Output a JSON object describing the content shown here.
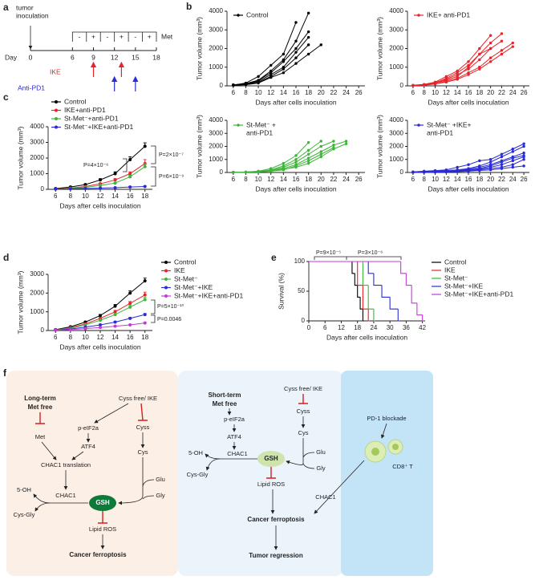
{
  "panel_labels": [
    "a",
    "b",
    "c",
    "d",
    "e",
    "f"
  ],
  "timeline": {
    "start_label": [
      "tumor",
      "inoculation"
    ],
    "day_label": "Day",
    "days": [
      0,
      6,
      9,
      12,
      15,
      18
    ],
    "met_label": "Met",
    "met_signs": [
      "-",
      "+",
      "-",
      "+",
      "-",
      "+"
    ],
    "ike_label": "IKE",
    "ike_days": [
      9,
      13
    ],
    "pd1_label": "Anti-PD1",
    "pd1_days": [
      12,
      15
    ]
  },
  "chart_data": [
    {
      "type": "line",
      "legend": [
        "Control"
      ],
      "color": "#000000",
      "x": [
        6,
        8,
        10,
        12,
        14,
        16,
        18,
        20,
        22,
        24,
        26
      ],
      "xlim": [
        5,
        27
      ],
      "xticks": [
        6,
        8,
        10,
        12,
        14,
        16,
        18,
        20,
        22,
        24,
        26
      ],
      "ylim": [
        0,
        4000
      ],
      "yticks": [
        0,
        1000,
        2000,
        3000,
        4000
      ],
      "xlabel": "Days after cells inoculation",
      "ylabel": "Tumor volume (mm³)",
      "series": [
        {
          "values": [
            60,
            100,
            300,
            800,
            1400,
            2400,
            3900,
            null,
            null,
            null,
            null
          ]
        },
        {
          "values": [
            40,
            150,
            500,
            1100,
            1700,
            3400,
            null,
            null,
            null,
            null,
            null
          ]
        },
        {
          "values": [
            50,
            120,
            300,
            700,
            1300,
            2000,
            2900,
            null,
            null,
            null,
            null
          ]
        },
        {
          "values": [
            30,
            100,
            250,
            600,
            1000,
            1800,
            2600,
            null,
            null,
            null,
            null
          ]
        },
        {
          "values": [
            30,
            80,
            200,
            500,
            900,
            1500,
            2200,
            null,
            null,
            null,
            null
          ]
        },
        {
          "values": [
            20,
            60,
            150,
            450,
            700,
            1200,
            1700,
            2200,
            null,
            null,
            null
          ]
        }
      ]
    },
    {
      "type": "line",
      "legend": [
        "IKE+ anti-PD1"
      ],
      "color": "#e8232a",
      "x": [
        6,
        8,
        10,
        12,
        14,
        16,
        18,
        20,
        22,
        24,
        26
      ],
      "xlim": [
        5,
        27
      ],
      "xticks": [
        6,
        8,
        10,
        12,
        14,
        16,
        18,
        20,
        22,
        24,
        26
      ],
      "ylim": [
        0,
        4000
      ],
      "yticks": [
        0,
        1000,
        2000,
        3000,
        4000
      ],
      "xlabel": "Days after cells inoculation",
      "ylabel": "Tumor volume (mm³)",
      "series": [
        {
          "values": [
            30,
            80,
            200,
            500,
            800,
            1300,
            2000,
            2700,
            null,
            null,
            null
          ]
        },
        {
          "values": [
            20,
            50,
            150,
            400,
            700,
            1100,
            1700,
            2300,
            2800,
            null,
            null
          ]
        },
        {
          "values": [
            20,
            60,
            180,
            350,
            600,
            900,
            1400,
            2000,
            2400,
            null,
            null
          ]
        },
        {
          "values": [
            10,
            30,
            100,
            250,
            400,
            700,
            1000,
            1500,
            1900,
            2300,
            null
          ]
        },
        {
          "values": [
            20,
            50,
            100,
            200,
            350,
            600,
            900,
            1300,
            1700,
            2100,
            null
          ]
        },
        {
          "values": [
            30,
            60,
            150,
            300,
            500,
            1000,
            1700,
            2000,
            null,
            null,
            null
          ]
        }
      ]
    },
    {
      "type": "line",
      "legend": [
        "St-Met⁻ +",
        "anti-PD1"
      ],
      "color": "#3fb53a",
      "x": [
        6,
        8,
        10,
        12,
        14,
        16,
        18,
        20,
        22,
        24,
        26
      ],
      "xlim": [
        5,
        27
      ],
      "xticks": [
        6,
        8,
        10,
        12,
        14,
        16,
        18,
        20,
        22,
        24,
        26
      ],
      "ylim": [
        0,
        4000
      ],
      "yticks": [
        0,
        1000,
        2000,
        3000,
        4000
      ],
      "xlabel": "Days after cells inoculation",
      "ylabel": "Tumor volume (mm³)",
      "series": [
        {
          "values": [
            20,
            40,
            100,
            300,
            700,
            1300,
            2300,
            null,
            null,
            null,
            null
          ]
        },
        {
          "values": [
            20,
            30,
            80,
            200,
            500,
            1000,
            1700,
            2400,
            null,
            null,
            null
          ]
        },
        {
          "values": [
            10,
            30,
            60,
            150,
            400,
            800,
            1400,
            2000,
            2400,
            null,
            null
          ]
        },
        {
          "values": [
            10,
            20,
            60,
            150,
            300,
            600,
            1100,
            1600,
            2100,
            2400,
            null
          ]
        },
        {
          "values": [
            10,
            20,
            50,
            100,
            200,
            500,
            900,
            1400,
            1900,
            null,
            null
          ]
        },
        {
          "values": [
            10,
            20,
            40,
            100,
            250,
            400,
            700,
            1200,
            1800,
            2200,
            null
          ]
        }
      ]
    },
    {
      "type": "line",
      "legend": [
        "St-Met⁻ +IKE+",
        "anti-PD1"
      ],
      "color": "#2b2bd6",
      "x": [
        6,
        8,
        10,
        12,
        14,
        16,
        18,
        20,
        22,
        24,
        26
      ],
      "xlim": [
        5,
        27
      ],
      "xticks": [
        6,
        8,
        10,
        12,
        14,
        16,
        18,
        20,
        22,
        24,
        26
      ],
      "ylim": [
        0,
        4000
      ],
      "yticks": [
        0,
        1000,
        2000,
        3000,
        4000
      ],
      "xlabel": "Days after cells inoculation",
      "ylabel": "Tumor volume (mm³)",
      "series": [
        {
          "values": [
            50,
            100,
            150,
            200,
            400,
            600,
            900,
            1000,
            1400,
            1800,
            2200
          ]
        },
        {
          "values": [
            30,
            60,
            100,
            150,
            200,
            300,
            500,
            800,
            1200,
            1600,
            2000
          ]
        },
        {
          "values": [
            20,
            40,
            60,
            100,
            150,
            250,
            400,
            600,
            900,
            1200,
            1500
          ]
        },
        {
          "values": [
            20,
            30,
            50,
            80,
            120,
            200,
            300,
            500,
            800,
            1100,
            1300
          ]
        },
        {
          "values": [
            10,
            20,
            40,
            60,
            100,
            150,
            250,
            400,
            600,
            900,
            1200
          ]
        },
        {
          "values": [
            10,
            20,
            30,
            50,
            80,
            120,
            200,
            300,
            400,
            600,
            1000
          ]
        },
        {
          "values": [
            10,
            10,
            20,
            40,
            60,
            100,
            150,
            200,
            300,
            400,
            500
          ]
        }
      ]
    },
    {
      "type": "line",
      "x": [
        6,
        8,
        10,
        12,
        14,
        16,
        18
      ],
      "xlim": [
        5,
        19
      ],
      "xticks": [
        6,
        8,
        10,
        12,
        14,
        16,
        18
      ],
      "ylim": [
        0,
        4000
      ],
      "yticks": [
        0,
        1000,
        2000,
        3000,
        4000
      ],
      "xlabel": "Days after cells inoculation",
      "ylabel": "Tumor volume (mm³)",
      "annotations": [
        "P=4×10⁻⁶",
        "P=2×10⁻⁷",
        "P=6×10⁻⁹"
      ],
      "series": [
        {
          "name": "Control",
          "color": "#000000",
          "values": [
            50,
            150,
            300,
            600,
            1000,
            1900,
            2750
          ],
          "errors": [
            10,
            30,
            50,
            80,
            120,
            180,
            220
          ]
        },
        {
          "name": "IKE+anti-PD1",
          "color": "#e8232a",
          "values": [
            30,
            80,
            180,
            350,
            600,
            1000,
            1650
          ],
          "errors": [
            10,
            20,
            30,
            50,
            80,
            120,
            250
          ]
        },
        {
          "name": "St-Met⁻+anti-PD1",
          "color": "#3fb53a",
          "values": [
            20,
            60,
            120,
            250,
            400,
            800,
            1450
          ],
          "errors": [
            5,
            15,
            25,
            40,
            60,
            100,
            200
          ]
        },
        {
          "name": "St-Met⁻+IKE+anti-PD1",
          "color": "#2b2bd6",
          "values": [
            20,
            30,
            50,
            80,
            100,
            150,
            180
          ],
          "errors": [
            5,
            10,
            10,
            15,
            20,
            30,
            40
          ]
        }
      ]
    },
    {
      "type": "line",
      "x": [
        6,
        8,
        10,
        12,
        14,
        16,
        18
      ],
      "xlim": [
        5,
        19
      ],
      "xticks": [
        6,
        8,
        10,
        12,
        14,
        16,
        18
      ],
      "ylim": [
        0,
        3000
      ],
      "yticks": [
        0,
        1000,
        2000,
        3000
      ],
      "xlabel": "Days after cells inoculation",
      "ylabel": "Tumor volume (mm³)",
      "annotations": [
        "P=5×10⁻¹⁰",
        "P=0.0046"
      ],
      "series": [
        {
          "name": "Control",
          "color": "#000000",
          "values": [
            50,
            200,
            450,
            800,
            1300,
            2000,
            2650
          ],
          "errors": [
            10,
            20,
            40,
            60,
            90,
            120,
            150
          ]
        },
        {
          "name": "IKE",
          "color": "#e8232a",
          "values": [
            40,
            150,
            350,
            650,
            1000,
            1450,
            1900
          ],
          "errors": [
            10,
            20,
            30,
            50,
            80,
            100,
            150
          ]
        },
        {
          "name": "St-Met⁻",
          "color": "#3fb53a",
          "values": [
            30,
            120,
            300,
            550,
            850,
            1250,
            1650
          ],
          "errors": [
            10,
            15,
            30,
            40,
            60,
            90,
            120
          ]
        },
        {
          "name": "St-Met⁻+IKE",
          "color": "#2b2bd6",
          "values": [
            20,
            80,
            180,
            300,
            450,
            650,
            850
          ],
          "errors": [
            5,
            10,
            20,
            30,
            40,
            50,
            60
          ]
        },
        {
          "name": "St-Met⁻+IKE+anti-PD1",
          "color": "#c43ad6",
          "values": [
            20,
            50,
            100,
            160,
            230,
            300,
            400
          ],
          "errors": [
            5,
            10,
            10,
            15,
            20,
            25,
            30
          ]
        }
      ]
    },
    {
      "type": "step",
      "xlim": [
        0,
        43
      ],
      "xticks": [
        0,
        6,
        12,
        18,
        24,
        30,
        36,
        42
      ],
      "ylim": [
        0,
        100
      ],
      "yticks": [
        0,
        50,
        100
      ],
      "xlabel": "Days after cells inoculation",
      "ylabel": "Survival (%)",
      "annotations": [
        "P=9×10⁻⁵",
        "P=3×10⁻⁶"
      ],
      "series": [
        {
          "name": "Control",
          "color": "#000000",
          "x": [
            0,
            16,
            17,
            18,
            19,
            20
          ],
          "values": [
            100,
            80,
            60,
            40,
            20,
            0
          ]
        },
        {
          "name": "IKE",
          "color": "#e8232a",
          "x": [
            0,
            18,
            20,
            22
          ],
          "values": [
            100,
            60,
            20,
            0
          ]
        },
        {
          "name": "St-Met⁻",
          "color": "#3fb53a",
          "x": [
            0,
            20,
            22,
            24
          ],
          "values": [
            100,
            60,
            20,
            0
          ]
        },
        {
          "name": "St-Met⁻+IKE",
          "color": "#2b2bd6",
          "x": [
            0,
            22,
            24,
            27,
            30,
            33
          ],
          "values": [
            100,
            80,
            60,
            40,
            20,
            0
          ]
        },
        {
          "name": "St-Met⁻+IKE+anti-PD1",
          "color": "#c43ad6",
          "x": [
            0,
            34,
            36,
            38,
            40,
            42
          ],
          "values": [
            100,
            80,
            60,
            30,
            10,
            0
          ]
        }
      ]
    }
  ],
  "diagram": {
    "left": {
      "long_term": [
        "Long-term",
        "Met free"
      ],
      "cyss_free": "Cyss free/ IKE",
      "met": "Met",
      "peif2a": "p-eIF2a",
      "atf4": "ATF4",
      "cyss": "Cyss",
      "cys": "Cys",
      "chac1_translation": "CHAC1 translation",
      "glu": "Glu",
      "gly": "Gly",
      "chac1": "CHAC1",
      "five_oh": "5-OH",
      "cys_gly": "Cys-Gly",
      "gsh": "GSH",
      "lipid_ros": "Lipid ROS",
      "outcome": "Cancer ferroptosis"
    },
    "middle": {
      "short_term": [
        "Short-term",
        "Met free"
      ],
      "cyss_free": "Cyss free/ IKE",
      "cyss": "Cyss",
      "peif2a": "p-eIF2a",
      "atf4": "ATF4",
      "cys": "Cys",
      "glu": "Glu",
      "gly": "Gly",
      "chac1": "CHAC1",
      "five_oh": "5-OH",
      "cys_gly": "Cys-Gly",
      "gsh": "GSH",
      "lipid_ros": "Lipid ROS",
      "outcome": "Cancer ferroptosis",
      "chac1_immune": "CHAC1",
      "result": "Tumor regression"
    },
    "right": {
      "blockade": "PD-1 blockade",
      "cell": "CD8⁺ T"
    }
  }
}
